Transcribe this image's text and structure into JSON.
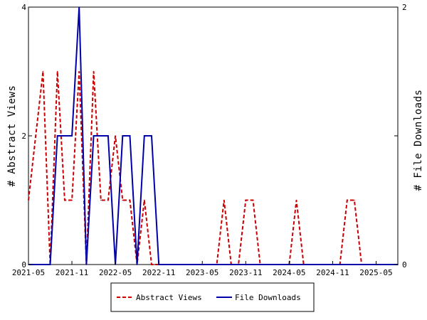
{
  "chart_data": {
    "type": "line",
    "x_ticks": [
      "2021-05",
      "2021-11",
      "2022-05",
      "2022-11",
      "2023-05",
      "2023-11",
      "2024-05",
      "2024-11",
      "2025-05"
    ],
    "y_left": {
      "label": "# Abstract Views",
      "ylim": [
        0,
        4
      ],
      "ticks": [
        "0",
        "2",
        "4"
      ]
    },
    "y_right": {
      "label": "# File Downloads",
      "ylim": [
        0,
        2
      ],
      "ticks": [
        "0",
        "1",
        "2"
      ]
    },
    "grid": false,
    "legend_position": "bottom",
    "x_range": [
      "2021-05",
      "2025-08"
    ],
    "series": [
      {
        "name": "Abstract Views",
        "axis": "left",
        "color": "#cc0000",
        "style": "dashed",
        "x": [
          "2021-05",
          "2021-06",
          "2021-07",
          "2021-08",
          "2021-09",
          "2021-10",
          "2021-11",
          "2021-12",
          "2022-01",
          "2022-02",
          "2022-03",
          "2022-04",
          "2022-05",
          "2022-06",
          "2022-07",
          "2022-08",
          "2022-09",
          "2022-10",
          "2022-11",
          "2022-12",
          "2023-01",
          "2023-02",
          "2023-03",
          "2023-04",
          "2023-05",
          "2023-06",
          "2023-07",
          "2023-08",
          "2023-09",
          "2023-10",
          "2023-11",
          "2023-12",
          "2024-01",
          "2024-02",
          "2024-03",
          "2024-04",
          "2024-05",
          "2024-06",
          "2024-07",
          "2024-08",
          "2024-09",
          "2024-10",
          "2024-11",
          "2024-12",
          "2025-01",
          "2025-02",
          "2025-03",
          "2025-04",
          "2025-05",
          "2025-06",
          "2025-07",
          "2025-08"
        ],
        "y": [
          1,
          2,
          3,
          0,
          3,
          1,
          1,
          3,
          0,
          3,
          1,
          1,
          2,
          1,
          1,
          0,
          1,
          0,
          0,
          0,
          0,
          0,
          0,
          0,
          0,
          0,
          0,
          1,
          0,
          0,
          1,
          1,
          0,
          0,
          0,
          0,
          0,
          1,
          0,
          0,
          0,
          0,
          0,
          0,
          1,
          1,
          0,
          0,
          0,
          0,
          0,
          0
        ]
      },
      {
        "name": "File Downloads",
        "axis": "right",
        "color": "#0000aa",
        "style": "solid",
        "x": [
          "2021-05",
          "2021-06",
          "2021-07",
          "2021-08",
          "2021-09",
          "2021-10",
          "2021-11",
          "2021-12",
          "2022-01",
          "2022-02",
          "2022-03",
          "2022-04",
          "2022-05",
          "2022-06",
          "2022-07",
          "2022-08",
          "2022-09",
          "2022-10",
          "2022-11",
          "2022-12",
          "2023-01",
          "2023-02",
          "2023-03",
          "2023-04",
          "2023-05",
          "2023-06",
          "2023-07",
          "2023-08",
          "2023-09",
          "2023-10",
          "2023-11",
          "2023-12",
          "2024-01",
          "2024-02",
          "2024-03",
          "2024-04",
          "2024-05",
          "2024-06",
          "2024-07",
          "2024-08",
          "2024-09",
          "2024-10",
          "2024-11",
          "2024-12",
          "2025-01",
          "2025-02",
          "2025-03",
          "2025-04",
          "2025-05",
          "2025-06",
          "2025-07",
          "2025-08"
        ],
        "y": [
          0,
          0,
          0,
          0,
          1,
          1,
          1,
          2,
          0,
          1,
          1,
          1,
          0,
          1,
          1,
          0,
          1,
          1,
          0,
          0,
          0,
          0,
          0,
          0,
          0,
          0,
          0,
          0,
          0,
          0,
          0,
          0,
          0,
          0,
          0,
          0,
          0,
          0,
          0,
          0,
          0,
          0,
          0,
          0,
          0,
          0,
          0,
          0,
          0,
          0,
          0,
          0
        ]
      }
    ]
  }
}
